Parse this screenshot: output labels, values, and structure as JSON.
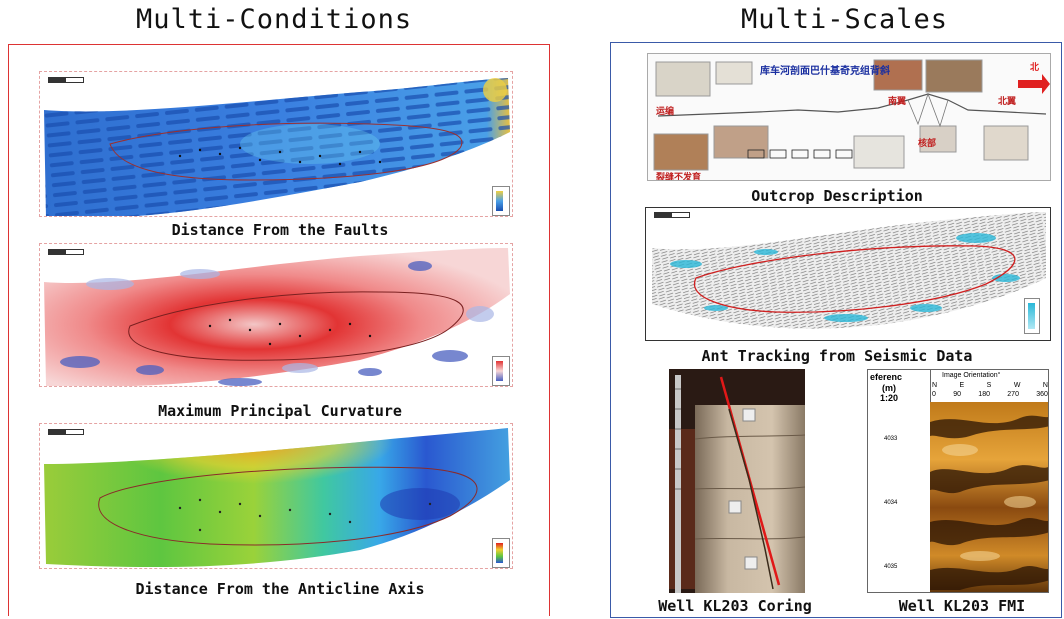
{
  "headings": {
    "left": "Multi-Conditions",
    "right": "Multi-Scales"
  },
  "left_panel": {
    "maps": [
      {
        "caption": "Distance From the Faults",
        "colormap": "blue-cyan"
      },
      {
        "caption": "Maximum Principal Curvature",
        "colormap": "red-white-blue"
      },
      {
        "caption": "Distance From the Anticline Axis",
        "colormap": "rainbow"
      }
    ]
  },
  "right_panel": {
    "outcrop": {
      "caption": "Outcrop Description",
      "chinese_title": "库车河剖面巴什基奇克组背斜",
      "labels": [
        "运编",
        "南翼",
        "北翼",
        "核部",
        "裂缝不发育"
      ],
      "north_label": "北"
    },
    "ant_tracking": {
      "caption": "Ant Tracking from Seismic Data"
    },
    "coring": {
      "caption": "Well KL203 Coring"
    },
    "fmi": {
      "caption": "Well KL203 FMI",
      "header_left": "eferenc",
      "header_unit": "(m)",
      "header_scale": "1:20",
      "header_title": "Image Orientation°",
      "directions": [
        "N",
        "E",
        "S",
        "W",
        "N"
      ],
      "degrees": [
        "0",
        "90",
        "180",
        "270",
        "360"
      ],
      "depths": [
        "4033",
        "4034",
        "4035"
      ]
    }
  },
  "colors": {
    "left_border": "#dd3333",
    "right_border": "#3a5aa8",
    "outline": "#c0392b"
  }
}
